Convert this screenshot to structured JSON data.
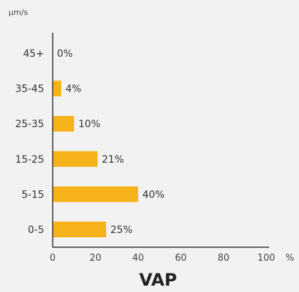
{
  "chart_data": {
    "type": "bar",
    "orientation": "horizontal",
    "title": "VAP",
    "ylabel": "µm/s",
    "xlabel": "%",
    "categories": [
      "45+",
      "35-45",
      "25-35",
      "15-25",
      "5-15",
      "0-5"
    ],
    "values": [
      0,
      4,
      10,
      21,
      40,
      25
    ],
    "data_labels": [
      "0%",
      "4%",
      "10%",
      "21%",
      "40%",
      "25%"
    ],
    "xlim": [
      0,
      100
    ],
    "xticks": [
      0,
      20,
      40,
      60,
      80,
      100
    ],
    "grid": false,
    "colors": {
      "bar": "#f5b21b"
    }
  }
}
